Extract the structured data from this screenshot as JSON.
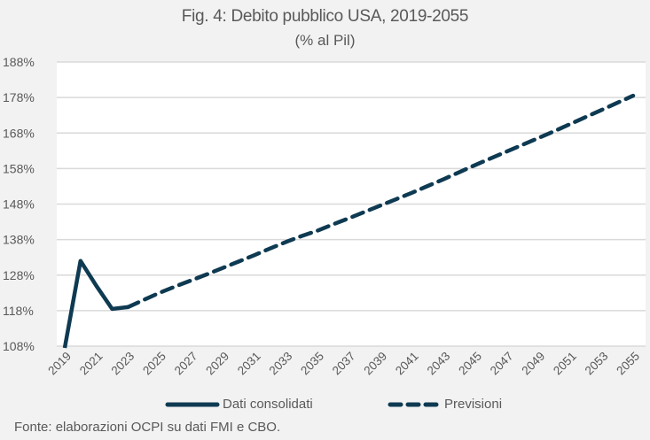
{
  "chart_data": {
    "type": "line",
    "title": "Fig. 4: Debito pubblico USA, 2019-2055",
    "subtitle": "(% al Pil)",
    "xlabel": "",
    "ylabel": "",
    "ylim": [
      108,
      188
    ],
    "y_ticks": [
      "108%",
      "118%",
      "128%",
      "138%",
      "148%",
      "158%",
      "168%",
      "178%",
      "188%"
    ],
    "y_tick_values": [
      108,
      118,
      128,
      138,
      148,
      158,
      168,
      178,
      188
    ],
    "x_ticks": [
      "2019",
      "2021",
      "2023",
      "2025",
      "2027",
      "2029",
      "2031",
      "2033",
      "2035",
      "2037",
      "2039",
      "2041",
      "2043",
      "2045",
      "2047",
      "2049",
      "2051",
      "2053",
      "2055"
    ],
    "grid": true,
    "legend_position": "bottom",
    "series": [
      {
        "name": "Dati consolidati",
        "style": "solid",
        "color": "#0e3a52",
        "x": [
          2019,
          2020,
          2021,
          2022,
          2023
        ],
        "values": [
          107.5,
          132,
          125,
          118.5,
          119
        ]
      },
      {
        "name": "Previsioni",
        "style": "dashed",
        "color": "#0e3a52",
        "x": [
          2023,
          2024,
          2025,
          2026,
          2027,
          2028,
          2029,
          2030,
          2031,
          2032,
          2033,
          2034,
          2035,
          2036,
          2037,
          2038,
          2039,
          2040,
          2041,
          2042,
          2043,
          2044,
          2045,
          2046,
          2047,
          2048,
          2049,
          2050,
          2051,
          2052,
          2053,
          2054,
          2055
        ],
        "values": [
          119,
          121,
          123,
          124.8,
          126.5,
          128.2,
          130,
          131.8,
          133.6,
          135.5,
          137.3,
          139,
          140.5,
          142.3,
          144,
          145.8,
          147.6,
          149.4,
          151.2,
          153.1,
          155,
          157,
          159,
          160.9,
          162.8,
          164.7,
          166.6,
          168.5,
          170.5,
          172.5,
          174.5,
          176.5,
          178.5
        ]
      }
    ],
    "source": "Fonte: elaborazioni OCPI su dati FMI e CBO."
  }
}
